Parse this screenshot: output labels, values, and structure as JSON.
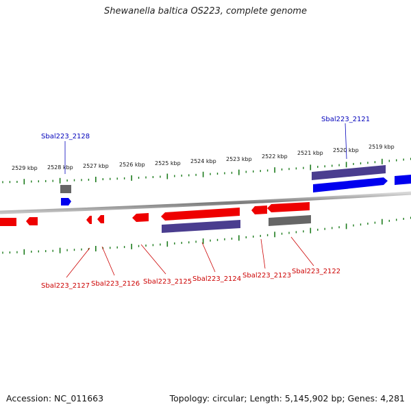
{
  "header": {
    "title": "Shewanella baltica OS223, complete genome"
  },
  "footer": {
    "accession": "Accession: NC_011663",
    "summary": "Topology: circular; Length: 5,145,902 bp; Genes: 4,281"
  },
  "ruler": {
    "kbp_labels": [
      "2529 kbp",
      "2528 kbp",
      "2527 kbp",
      "2526 kbp",
      "2525 kbp",
      "2524 kbp",
      "2523 kbp",
      "2522 kbp",
      "2521 kbp",
      "2520 kbp",
      "2519 kbp"
    ]
  },
  "genes": {
    "forward": [
      {
        "name": "Sbal223_2128",
        "strand": "forward",
        "color": "#0000ee"
      },
      {
        "name": "Sbal223_2121",
        "strand": "forward",
        "color": "#0000ee"
      }
    ],
    "reverse": [
      {
        "name": "Sbal223_2127",
        "strand": "reverse",
        "color": "#ee0000"
      },
      {
        "name": "Sbal223_2126",
        "strand": "reverse",
        "color": "#ee0000"
      },
      {
        "name": "Sbal223_2125",
        "strand": "reverse",
        "color": "#ee0000"
      },
      {
        "name": "Sbal223_2124",
        "strand": "reverse",
        "color": "#ee0000"
      },
      {
        "name": "Sbal223_2123",
        "strand": "reverse",
        "color": "#ee0000"
      },
      {
        "name": "Sbal223_2122",
        "strand": "reverse",
        "color": "#ee0000"
      }
    ]
  },
  "colors": {
    "forward_cds": "#0000ee",
    "reverse_cds": "#ee0000",
    "feature_purple": "#4a3d8f",
    "feature_gray": "#666666",
    "backbone": "#8a8a8a",
    "ticks": "#1a7a1a"
  }
}
